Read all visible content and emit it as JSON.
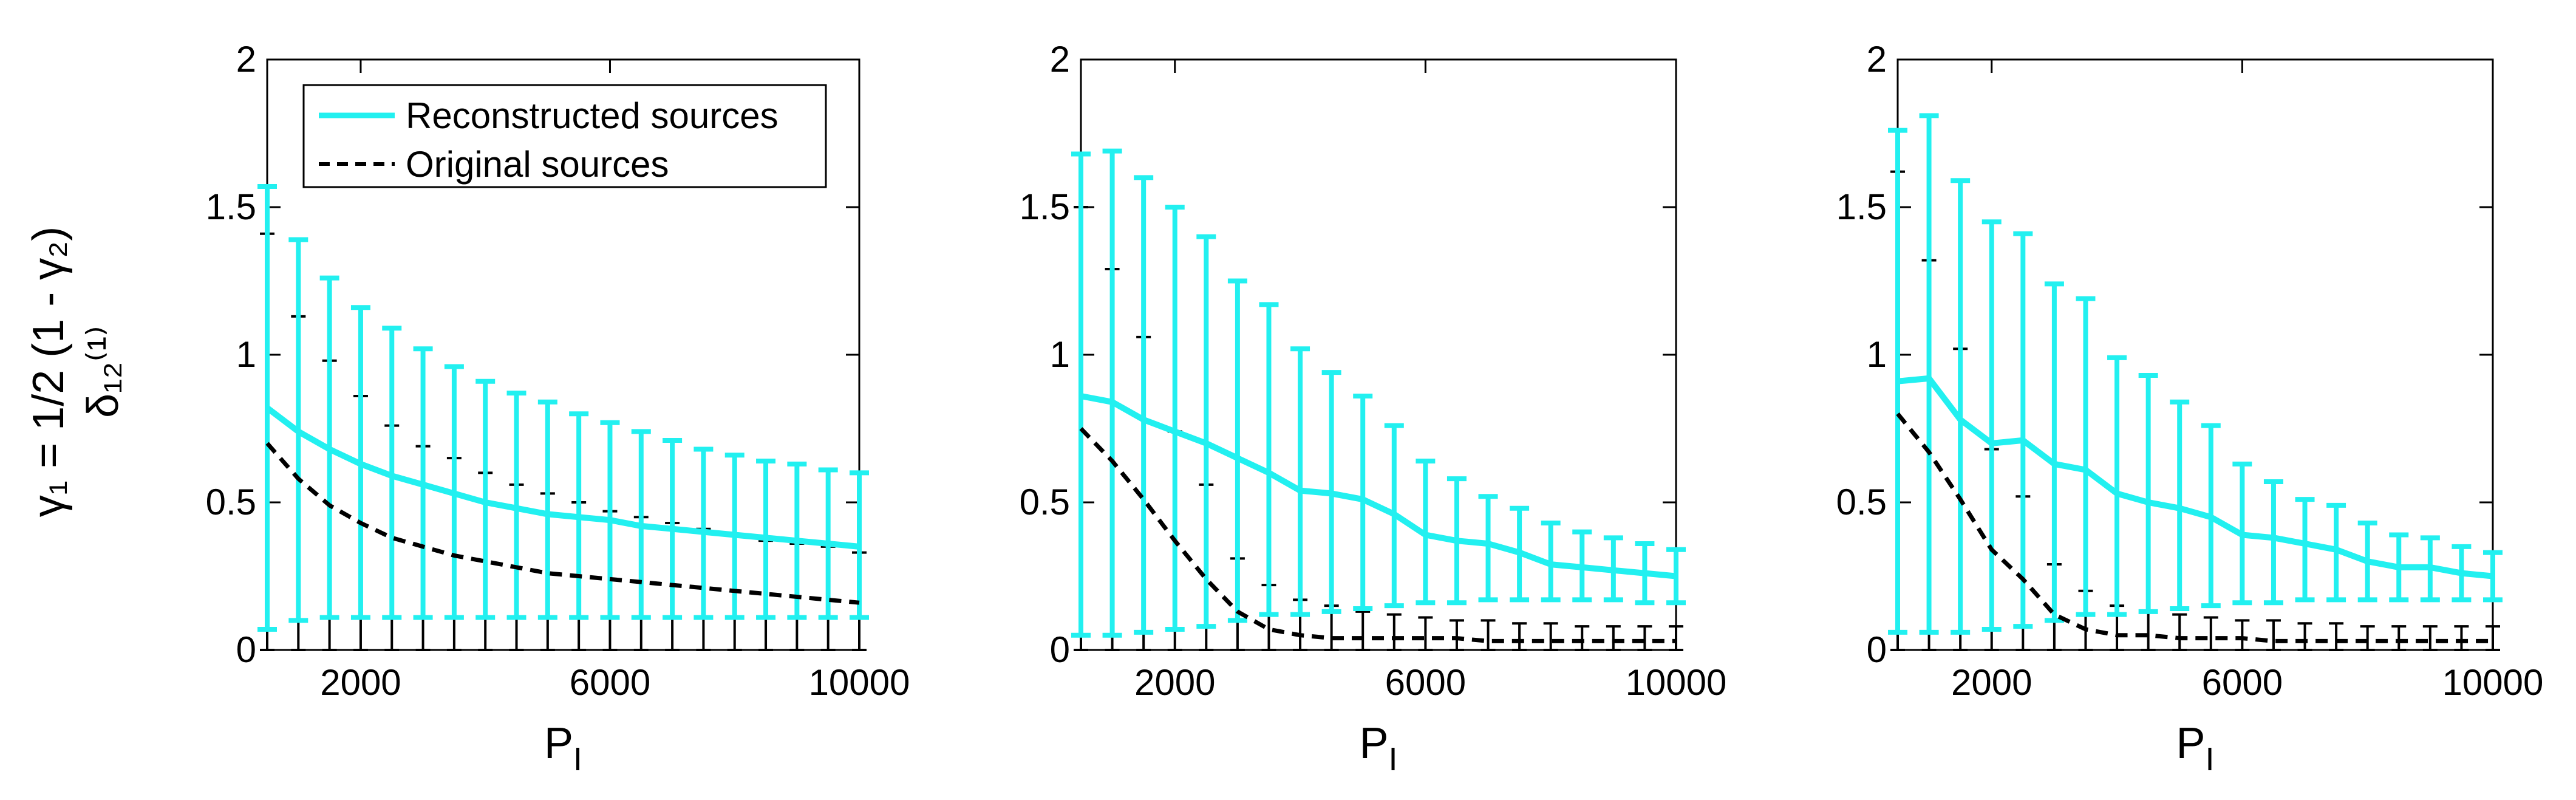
{
  "figure": {
    "ylabel_line1": "γ₁ = 1/2 (1 - γ₂)",
    "ylabel_line2": "δ₁₂⁽¹⁾",
    "colors": {
      "reconstructed": "#22f0f0",
      "original": "#000000",
      "axes": "#000000",
      "background": "#ffffff"
    }
  },
  "legend": {
    "items": [
      {
        "label": "Reconstructed sources",
        "style": "solid",
        "color": "#22f0f0"
      },
      {
        "label": "Original sources",
        "style": "dashed",
        "color": "#000000"
      }
    ],
    "placement": "top-left of first panel"
  },
  "chart_data": [
    {
      "type": "line",
      "panel": 1,
      "xlabel": "P_I",
      "ylabel": "γ₁ = 1/2 (1 - γ₂), δ₁₂⁽¹⁾",
      "xlim": [
        500,
        10000
      ],
      "ylim": [
        0,
        2
      ],
      "xticks": [
        2000,
        6000,
        10000
      ],
      "yticks": [
        0,
        0.5,
        1,
        1.5,
        2
      ],
      "x": [
        500,
        1000,
        1500,
        2000,
        2500,
        3000,
        3500,
        4000,
        4500,
        5000,
        5500,
        6000,
        6500,
        7000,
        7500,
        8000,
        8500,
        9000,
        9500,
        10000
      ],
      "series": [
        {
          "name": "Reconstructed sources",
          "style": "solid",
          "values": [
            0.82,
            0.74,
            0.68,
            0.63,
            0.59,
            0.56,
            0.53,
            0.5,
            0.48,
            0.46,
            0.45,
            0.44,
            0.42,
            0.41,
            0.4,
            0.39,
            0.38,
            0.37,
            0.36,
            0.35
          ],
          "upper": [
            1.57,
            1.39,
            1.26,
            1.16,
            1.09,
            1.02,
            0.96,
            0.91,
            0.87,
            0.84,
            0.8,
            0.77,
            0.74,
            0.71,
            0.68,
            0.66,
            0.64,
            0.63,
            0.61,
            0.6
          ],
          "lower": [
            0.07,
            0.1,
            0.11,
            0.11,
            0.11,
            0.11,
            0.11,
            0.11,
            0.11,
            0.11,
            0.11,
            0.11,
            0.11,
            0.11,
            0.11,
            0.11,
            0.11,
            0.11,
            0.11,
            0.11
          ]
        },
        {
          "name": "Original sources",
          "style": "dashed",
          "values": [
            0.7,
            0.58,
            0.49,
            0.43,
            0.38,
            0.35,
            0.32,
            0.3,
            0.28,
            0.26,
            0.25,
            0.24,
            0.23,
            0.22,
            0.21,
            0.2,
            0.19,
            0.18,
            0.17,
            0.16
          ],
          "upper": [
            1.41,
            1.13,
            0.98,
            0.86,
            0.76,
            0.69,
            0.65,
            0.6,
            0.56,
            0.53,
            0.5,
            0.47,
            0.45,
            0.43,
            0.41,
            0.39,
            0.37,
            0.36,
            0.35,
            0.33
          ],
          "lower": [
            0,
            0,
            0,
            0,
            0,
            0,
            0,
            0,
            0,
            0,
            0,
            0,
            0,
            0,
            0,
            0,
            0,
            0,
            0,
            0
          ]
        }
      ]
    },
    {
      "type": "line",
      "panel": 2,
      "xlabel": "P_I",
      "ylabel": "",
      "xlim": [
        500,
        10000
      ],
      "ylim": [
        0,
        2
      ],
      "xticks": [
        2000,
        6000,
        10000
      ],
      "yticks": [
        0,
        0.5,
        1,
        1.5,
        2
      ],
      "x": [
        500,
        1000,
        1500,
        2000,
        2500,
        3000,
        3500,
        4000,
        4500,
        5000,
        5500,
        6000,
        6500,
        7000,
        7500,
        8000,
        8500,
        9000,
        9500,
        10000
      ],
      "series": [
        {
          "name": "Reconstructed sources",
          "style": "solid",
          "values": [
            0.86,
            0.84,
            0.78,
            0.74,
            0.7,
            0.65,
            0.6,
            0.54,
            0.53,
            0.51,
            0.46,
            0.39,
            0.37,
            0.36,
            0.33,
            0.29,
            0.28,
            0.27,
            0.26,
            0.25
          ],
          "upper": [
            1.68,
            1.69,
            1.6,
            1.5,
            1.4,
            1.25,
            1.17,
            1.02,
            0.94,
            0.86,
            0.76,
            0.64,
            0.58,
            0.52,
            0.48,
            0.43,
            0.4,
            0.38,
            0.36,
            0.34
          ],
          "lower": [
            0.05,
            0.05,
            0.06,
            0.07,
            0.08,
            0.1,
            0.12,
            0.12,
            0.13,
            0.14,
            0.15,
            0.16,
            0.16,
            0.17,
            0.17,
            0.17,
            0.17,
            0.17,
            0.16,
            0.16
          ]
        },
        {
          "name": "Original sources",
          "style": "dashed",
          "values": [
            0.75,
            0.64,
            0.51,
            0.37,
            0.24,
            0.13,
            0.07,
            0.05,
            0.04,
            0.04,
            0.04,
            0.04,
            0.04,
            0.03,
            0.03,
            0.03,
            0.03,
            0.03,
            0.03,
            0.03
          ],
          "upper": [
            1.5,
            1.29,
            1.06,
            0.74,
            0.56,
            0.31,
            0.22,
            0.17,
            0.15,
            0.13,
            0.12,
            0.11,
            0.1,
            0.1,
            0.09,
            0.09,
            0.08,
            0.08,
            0.08,
            0.08
          ],
          "lower": [
            0,
            0,
            0,
            0,
            0,
            0,
            0,
            0,
            0,
            0,
            0,
            0,
            0,
            0,
            0,
            0,
            0,
            0,
            0,
            0
          ]
        }
      ]
    },
    {
      "type": "line",
      "panel": 3,
      "xlabel": "P_I",
      "ylabel": "",
      "xlim": [
        500,
        10000
      ],
      "ylim": [
        0,
        2
      ],
      "xticks": [
        2000,
        6000,
        10000
      ],
      "yticks": [
        0,
        0.5,
        1,
        1.5,
        2
      ],
      "x": [
        500,
        1000,
        1500,
        2000,
        2500,
        3000,
        3500,
        4000,
        4500,
        5000,
        5500,
        6000,
        6500,
        7000,
        7500,
        8000,
        8500,
        9000,
        9500,
        10000
      ],
      "series": [
        {
          "name": "Reconstructed sources",
          "style": "solid",
          "values": [
            0.91,
            0.92,
            0.78,
            0.7,
            0.71,
            0.63,
            0.61,
            0.53,
            0.5,
            0.48,
            0.45,
            0.39,
            0.38,
            0.36,
            0.34,
            0.3,
            0.28,
            0.28,
            0.26,
            0.25
          ],
          "upper": [
            1.76,
            1.81,
            1.59,
            1.45,
            1.41,
            1.24,
            1.19,
            0.99,
            0.93,
            0.84,
            0.76,
            0.63,
            0.57,
            0.51,
            0.49,
            0.43,
            0.39,
            0.38,
            0.35,
            0.33
          ],
          "lower": [
            0.06,
            0.06,
            0.06,
            0.07,
            0.08,
            0.1,
            0.12,
            0.12,
            0.13,
            0.14,
            0.15,
            0.16,
            0.16,
            0.17,
            0.17,
            0.17,
            0.17,
            0.17,
            0.17,
            0.17
          ]
        },
        {
          "name": "Original sources",
          "style": "dashed",
          "values": [
            0.8,
            0.67,
            0.51,
            0.34,
            0.24,
            0.12,
            0.07,
            0.05,
            0.05,
            0.04,
            0.04,
            0.04,
            0.03,
            0.03,
            0.03,
            0.03,
            0.03,
            0.03,
            0.03,
            0.03
          ],
          "upper": [
            1.62,
            1.32,
            1.02,
            0.68,
            0.52,
            0.29,
            0.2,
            0.15,
            0.13,
            0.12,
            0.11,
            0.1,
            0.1,
            0.09,
            0.09,
            0.08,
            0.08,
            0.08,
            0.08,
            0.08
          ],
          "lower": [
            0,
            0,
            0,
            0,
            0,
            0,
            0,
            0,
            0,
            0,
            0,
            0,
            0,
            0,
            0,
            0,
            0,
            0,
            0,
            0
          ]
        }
      ]
    }
  ]
}
